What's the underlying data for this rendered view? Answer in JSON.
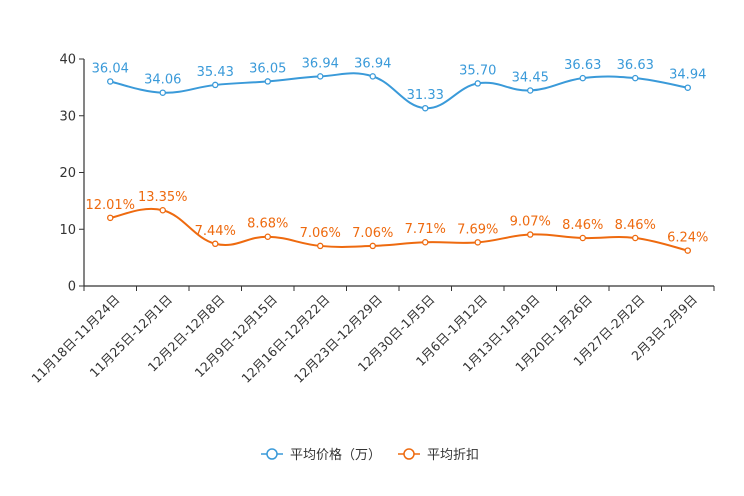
{
  "chart_data": {
    "type": "line",
    "categories": [
      "11月18日-11月24日",
      "11月25日-12月1日",
      "12月2日-12月8日",
      "12月9日-12月15日",
      "12月16日-12月22日",
      "12月23日-12月29日",
      "12月30日-1月5日",
      "1月6日-1月12日",
      "1月13日-1月19日",
      "1月20日-1月26日",
      "1月27日-2月2日",
      "2月3日-2月9日"
    ],
    "ylim": [
      0,
      40
    ],
    "yticks": [
      0,
      10,
      20,
      30,
      40
    ],
    "series": [
      {
        "name": "平均价格（万）",
        "color": "#3a9ad9",
        "values": [
          36.04,
          34.06,
          35.43,
          36.05,
          36.94,
          36.94,
          31.33,
          35.7,
          34.45,
          36.63,
          36.63,
          34.94
        ],
        "labels": [
          "36.04",
          "34.06",
          "35.43",
          "36.05",
          "36.94",
          "36.94",
          "31.33",
          "35.70",
          "34.45",
          "36.63",
          "36.63",
          "34.94"
        ]
      },
      {
        "name": "平均折扣",
        "color": "#ee6a0f",
        "values": [
          12.01,
          13.35,
          7.44,
          8.68,
          7.06,
          7.06,
          7.71,
          7.69,
          9.07,
          8.46,
          8.46,
          6.24
        ],
        "labels": [
          "12.01%",
          "13.35%",
          "7.44%",
          "8.68%",
          "7.06%",
          "7.06%",
          "7.71%",
          "7.69%",
          "9.07%",
          "8.46%",
          "8.46%",
          "6.24%"
        ]
      }
    ],
    "legend_position": "bottom-center",
    "grid": false
  }
}
